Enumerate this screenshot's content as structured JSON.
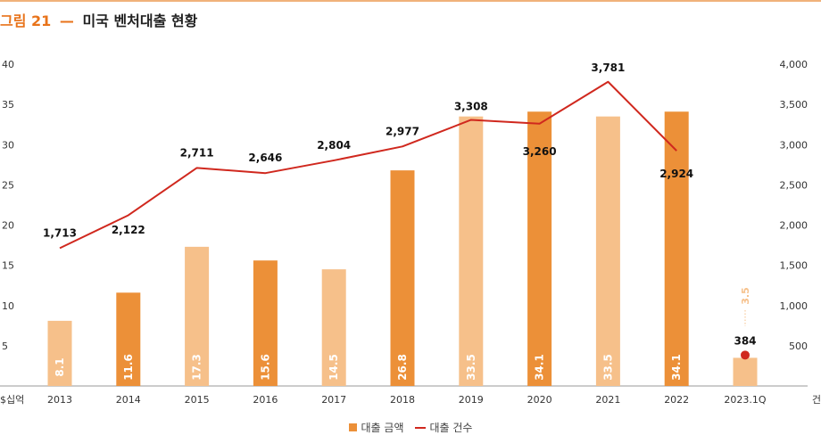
{
  "title": {
    "figure": "그림 21",
    "dash": "—",
    "text": "미국 벤처대출 현황"
  },
  "colors": {
    "accent": "#e8731a",
    "bar_dark": "#ec9038",
    "bar_light": "#f6c08a",
    "line": "#d0281e",
    "point": "#d0281e"
  },
  "chart_data": {
    "type": "bar",
    "categories": [
      "2013",
      "2014",
      "2015",
      "2016",
      "2017",
      "2018",
      "2019",
      "2020",
      "2021",
      "2022",
      "2023.1Q"
    ],
    "bar_shades": [
      "light",
      "dark",
      "light",
      "dark",
      "light",
      "dark",
      "light",
      "dark",
      "light",
      "dark",
      "light"
    ],
    "series": [
      {
        "name": "대출 금액",
        "type": "bar",
        "axis": "left",
        "values": [
          8.1,
          11.6,
          17.3,
          15.6,
          14.5,
          26.8,
          33.5,
          34.1,
          33.5,
          34.1,
          3.5
        ],
        "labels": [
          "8.1",
          "11.6",
          "17.3",
          "15.6",
          "14.5",
          "26.8",
          "33.5",
          "34.1",
          "33.5",
          "34.1",
          "3.5"
        ]
      },
      {
        "name": "대출 건수",
        "type": "line",
        "axis": "right",
        "values": [
          1713,
          2122,
          2711,
          2646,
          2804,
          2977,
          3308,
          3260,
          3781,
          2924,
          384
        ],
        "labels": [
          "1,713",
          "2,122",
          "2,711",
          "2,646",
          "2,804",
          "2,977",
          "3,308",
          "3,260",
          "3,781",
          "2,924",
          "384"
        ],
        "line_points": 10,
        "separate_point": 1
      }
    ],
    "left_axis": {
      "unit": "$십억",
      "ticks": [
        "40",
        "35",
        "30",
        "25",
        "20",
        "15",
        "10",
        "5"
      ],
      "tick_values": [
        40,
        35,
        30,
        25,
        20,
        15,
        10,
        5
      ],
      "range": [
        0,
        40
      ]
    },
    "right_axis": {
      "unit": "건",
      "ticks": [
        "4,000",
        "3,500",
        "3,000",
        "2,500",
        "2,000",
        "1,500",
        "1,000",
        "500"
      ],
      "tick_values": [
        4000,
        3500,
        3000,
        2500,
        2000,
        1500,
        1000,
        500
      ],
      "range": [
        0,
        4000
      ]
    },
    "grid": false,
    "legend_position": "bottom-center"
  },
  "legend": {
    "items": [
      {
        "label": "대출 금액",
        "kind": "bar"
      },
      {
        "label": "대출 건수",
        "kind": "line"
      }
    ]
  }
}
